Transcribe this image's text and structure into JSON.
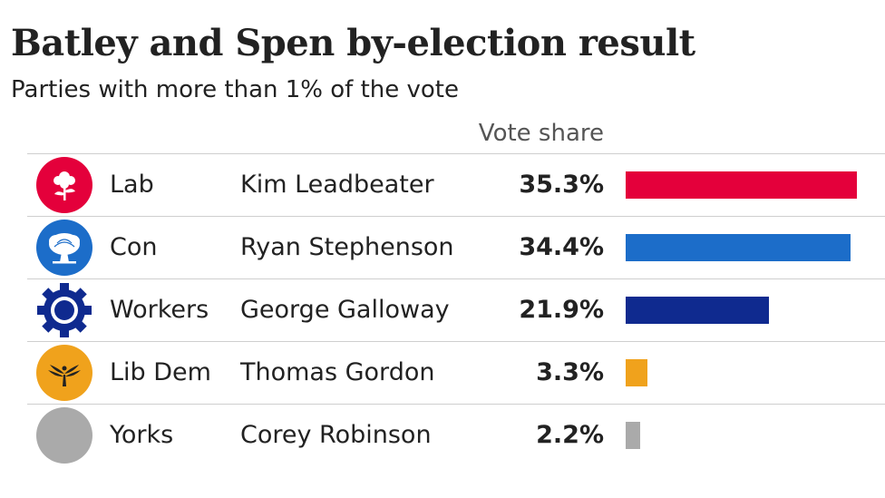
{
  "title": "Batley and Spen by-election result",
  "subtitle": "Parties with more than 1% of the vote",
  "column_header": "Vote share",
  "rows": [
    {
      "party": "Lab",
      "candidate": "Kim Leadbeater",
      "share_label": "35.3%",
      "share": 35.3,
      "color": "#e4003b",
      "logo_color": "#e4003b",
      "icon": "labour-rose-icon"
    },
    {
      "party": "Con",
      "candidate": "Ryan Stephenson",
      "share_label": "34.4%",
      "share": 34.4,
      "color": "#1c6dc9",
      "logo_color": "#1c6dc9",
      "icon": "conservative-tree-icon"
    },
    {
      "party": "Workers",
      "candidate": "George Galloway",
      "share_label": "21.9%",
      "share": 21.9,
      "color": "#0f2a8f",
      "logo_color": "#0f2a8f",
      "icon": "workers-cog-icon"
    },
    {
      "party": "Lib Dem",
      "candidate": "Thomas Gordon",
      "share_label": "3.3%",
      "share": 3.3,
      "color": "#f0a21c",
      "logo_color": "#f0a21c",
      "icon": "libdem-bird-icon"
    },
    {
      "party": "Yorks",
      "candidate": "Corey Robinson",
      "share_label": "2.2%",
      "share": 2.2,
      "color": "#aaaaaa",
      "logo_color": "#aaaaaa",
      "icon": "grey-circle-icon"
    }
  ],
  "chart_data": {
    "type": "bar",
    "orientation": "horizontal",
    "title": "Batley and Spen by-election result",
    "subtitle": "Parties with more than 1% of the vote",
    "column_header": "Vote share",
    "categories": [
      "Lab",
      "Con",
      "Workers",
      "Lib Dem",
      "Yorks"
    ],
    "candidates": [
      "Kim Leadbeater",
      "Ryan Stephenson",
      "George Galloway",
      "Thomas Gordon",
      "Corey Robinson"
    ],
    "values": [
      35.3,
      34.4,
      21.9,
      3.3,
      2.2
    ],
    "unit": "%",
    "colors": [
      "#e4003b",
      "#1c6dc9",
      "#0f2a8f",
      "#f0a21c",
      "#aaaaaa"
    ],
    "xlim": [
      0,
      35.3
    ],
    "grid": false,
    "legend": "none"
  }
}
